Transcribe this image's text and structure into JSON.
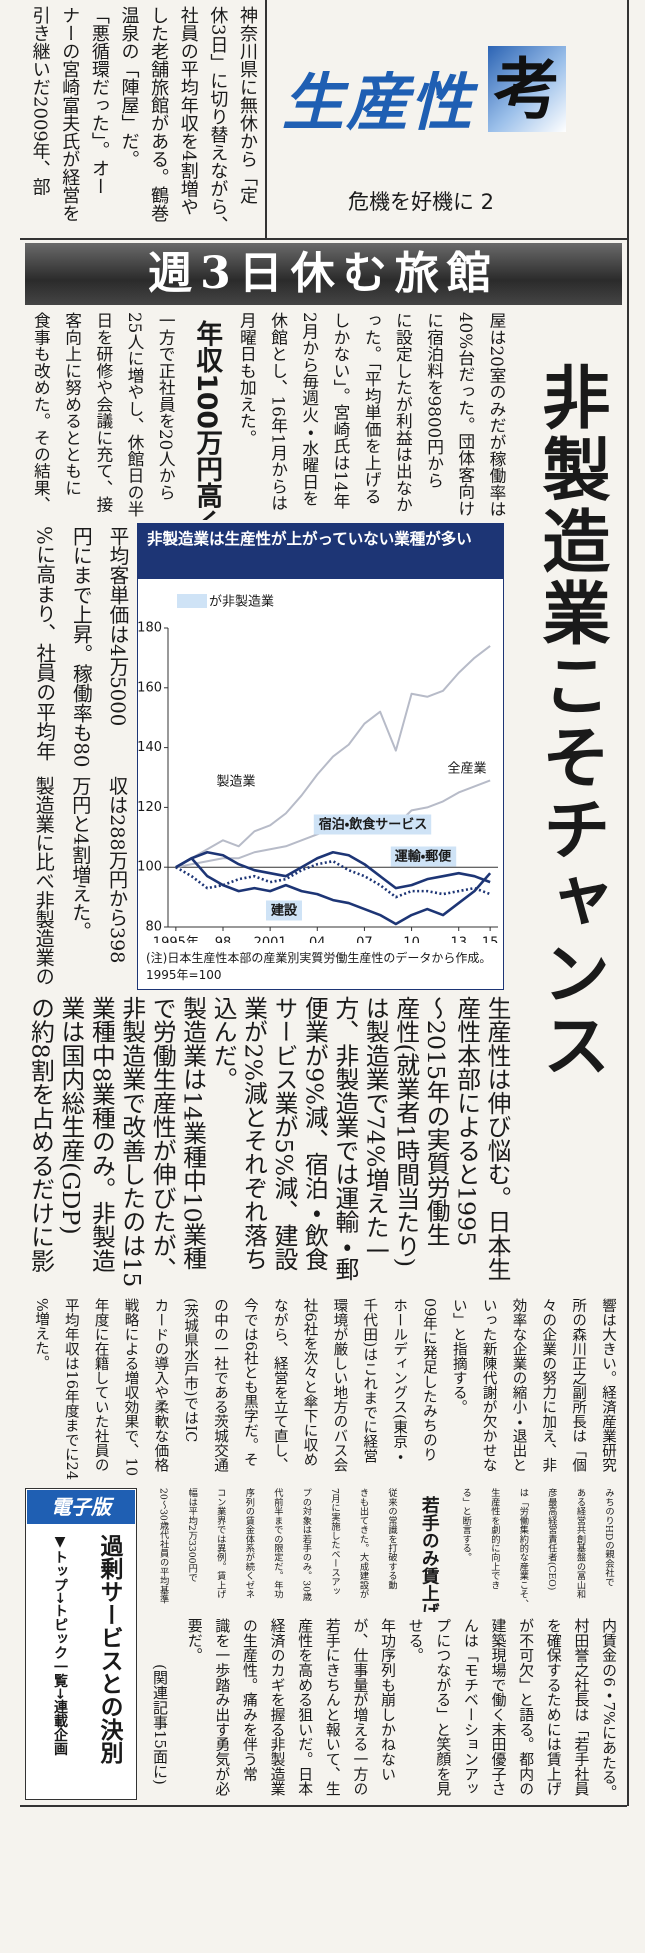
{
  "header": {
    "series": "生産性",
    "series_mark": "考",
    "subtitle": "危機を好機に 2",
    "banner": "週3日休む旅館",
    "headline": "非製造業こそチャンス"
  },
  "article": [
    {
      "blocks": [
        {
          "columns": [
            "神奈川県に無休から「定",
            "休3日」に切り替えながら、",
            "社員の平均年収を4割増や",
            "した老舗旅館がある。鶴巻",
            "温泉の「陣屋」だ。",
            "「悪循環だった」。オー",
            "ナーの宮崎富夫氏が経営を",
            "引き継いだ2009年、部"
          ]
        }
      ]
    },
    {
      "blocks": [
        {
          "columns": [
            "屋は20室のみだが稼働率は",
            "40%台だった。団体客向け",
            "に宿泊料を9800円から",
            "に設定したが利益は出なか",
            "った。「平均単価を上げる",
            "しかない」。宮崎氏は14年",
            "2月から毎週火・水曜日を",
            "休館とし、16年1月からは",
            "月曜日も加えた。"
          ]
        },
        {
          "heading": "年収100万円高く"
        },
        {
          "columns": [
            "一方で正社員を20人から",
            "25人に増やし、休館日の半",
            "日を研修や会議に充て、接",
            "客向上に努めるとともに",
            "食事も改めた。その結果、"
          ]
        }
      ]
    },
    {
      "blocks": [
        {
          "columns": [
            "平均客単価は4万5000",
            "円にまで上昇。稼働率も80",
            "%に高まり、社員の平均年"
          ]
        }
      ]
    },
    {
      "blocks": [
        {
          "columns": [
            "収は288万円から398",
            "万円と4割増えた。",
            "製造業に比べ非製造業の"
          ]
        }
      ]
    },
    {
      "blocks": [
        {
          "columns": [
            "生産性は伸び悩む。日本生",
            "産性本部によると1995",
            "～2015年の実質労働生",
            "産性(就業者1時間当たり)",
            "は製造業で74%増えた一",
            "方、非製造業では運輸・郵",
            "便業が9%減、宿泊・飲食",
            "サービス業が5%減、建設",
            "業が2%減とそれぞれ落ち",
            "込んだ。",
            "製造業は14業種中10業種",
            "で労働生産性が伸びたが、",
            "非製造業で改善したのは15",
            "業種中8業種のみ。非製造",
            "業は国内総生産(GDP)",
            "の約8割を占めるだけに影"
          ]
        }
      ]
    },
    {
      "blocks": [
        {
          "columns": [
            "響は大きい。経済産業研究",
            "所の森川正之副所長は「個",
            "々の企業の努力に加え、非",
            "効率な企業の縮小・退出と",
            "いった新陳代謝が欠かせな",
            "い」と指摘する。",
            "09年に発足したみちのり",
            "ホールディングス(東京・",
            "千代田)はこれまでに経営",
            "環境が厳しい地方のバス会",
            "社6社を次々と傘下に収め",
            "ながら、経営を立て直し、",
            "今では6社とも黒字だ。そ",
            "の中の一社である茨城交通",
            "(茨城県水戸市)ではIC",
            "カードの導入や柔軟な価格",
            "戦略による増収効果で、10",
            "年度に在籍していた社員の",
            "平均年収は16年度までに24",
            "%増えた。"
          ]
        }
      ]
    },
    {
      "blocks": [
        {
          "columns": [
            "みちのりHDの親会社で",
            "ある経営共創基盤の冨山和",
            "彦最高経営責任者(CEO)",
            "は「労働集約的な産業こそ、",
            "生産性を劇的に向上でき",
            "る」と断言する。"
          ]
        },
        {
          "heading": "若手のみ賃上げ"
        },
        {
          "columns": [
            "従来の常識を打破する動",
            "きも出てきた。大成建設が",
            "7月に実施したベースアッ",
            "プの対象は若手のみ。30歳",
            "代前半までの限定だ。年功",
            "序列の賃金体系が続くゼネ",
            "コン業界では異例。賃上げ",
            "幅は平均2万3300円で",
            "20～30歳代社員の平均基準"
          ]
        }
      ]
    },
    {
      "blocks": [
        {
          "columns": [
            "内賃金の6・7%にあたる。",
            "村田誉之社長は「若手社員",
            "を確保するためには賃上げ",
            "が不可欠」と語る。都内の",
            "建築現場で働く末田優子さ",
            "んは「モチベーションアッ",
            "プにつながる」と笑顔を見",
            "せる。",
            "年功序列も崩しかねない",
            "が、仕事量が増える一方の",
            "若手にきちんと報いて、生",
            "産性を高める狙いだ。日本",
            "経済のカギを握る非製造業",
            "の生産性。痛みを伴う常",
            "識を一歩踏み出す勇気が必",
            "要だ。"
          ]
        }
      ]
    }
  ],
  "related": "(関連記事15面に)",
  "digital": {
    "label": "電子版",
    "title": "過剰サービスとの決別",
    "path": "▼トップ→トピック一覧→連載企画"
  },
  "chart_data": {
    "type": "line",
    "title": "非製造業は生産性が上がっていない業種が多い",
    "legend_label": "が非製造業",
    "highlight_color": "#cfe3f6",
    "note": "(注)日本生産性本部の産業別実質労働生産性のデータから作成。1995年=100",
    "x": [
      1995,
      1996,
      1997,
      1998,
      1999,
      2000,
      2001,
      2002,
      2003,
      2004,
      2005,
      2006,
      2007,
      2008,
      2009,
      2010,
      2011,
      2012,
      2013,
      2014,
      2015
    ],
    "xlim": [
      1994.5,
      2015.5
    ],
    "xticks": [
      {
        "value": 1995,
        "label": "1995年"
      },
      {
        "value": 1998,
        "label": "98"
      },
      2001,
      {
        "value": 2004,
        "label": "04"
      },
      {
        "value": 2007,
        "label": "07"
      },
      {
        "value": 2010,
        "label": "10"
      },
      {
        "value": 2013,
        "label": "13"
      },
      {
        "value": 2015,
        "label": "15"
      }
    ],
    "ylim": [
      80,
      180
    ],
    "yticks": [
      80,
      100,
      120,
      140,
      160,
      180
    ],
    "reference_line": 100,
    "series": [
      {
        "name": "製造業",
        "color": "#b7bbc8",
        "highlight": false,
        "values": [
          100,
          103,
          106,
          109,
          107,
          112,
          114,
          118,
          124,
          131,
          137,
          141,
          148,
          152,
          139,
          158,
          157,
          159,
          165,
          170,
          174
        ]
      },
      {
        "name": "全産業",
        "color": "#b7bbc8",
        "highlight": false,
        "values": [
          100,
          101,
          102,
          103,
          103,
          105,
          106,
          107,
          109,
          111,
          113,
          114,
          116,
          117,
          114,
          119,
          120,
          122,
          125,
          127,
          129
        ]
      },
      {
        "name": "宿泊・飲食サービス",
        "color": "#1d3575",
        "highlight": true,
        "values": [
          100,
          103,
          105,
          104,
          101,
          99,
          98,
          97,
          100,
          103,
          105,
          104,
          101,
          97,
          93,
          94,
          96,
          97,
          98,
          97,
          95
        ]
      },
      {
        "name": "運輸・郵便",
        "color": "#1d3575",
        "highlight": true,
        "dotted": true,
        "values": [
          100,
          97,
          93,
          94,
          96,
          97,
          95,
          96,
          99,
          101,
          102,
          99,
          97,
          94,
          90,
          92,
          92,
          91,
          92,
          93,
          91
        ]
      },
      {
        "name": "建設",
        "color": "#1d3575",
        "highlight": true,
        "values": [
          100,
          103,
          97,
          94,
          92,
          93,
          92,
          94,
          92,
          91,
          89,
          88,
          86,
          84,
          81,
          84,
          86,
          84,
          88,
          92,
          98
        ]
      }
    ]
  }
}
